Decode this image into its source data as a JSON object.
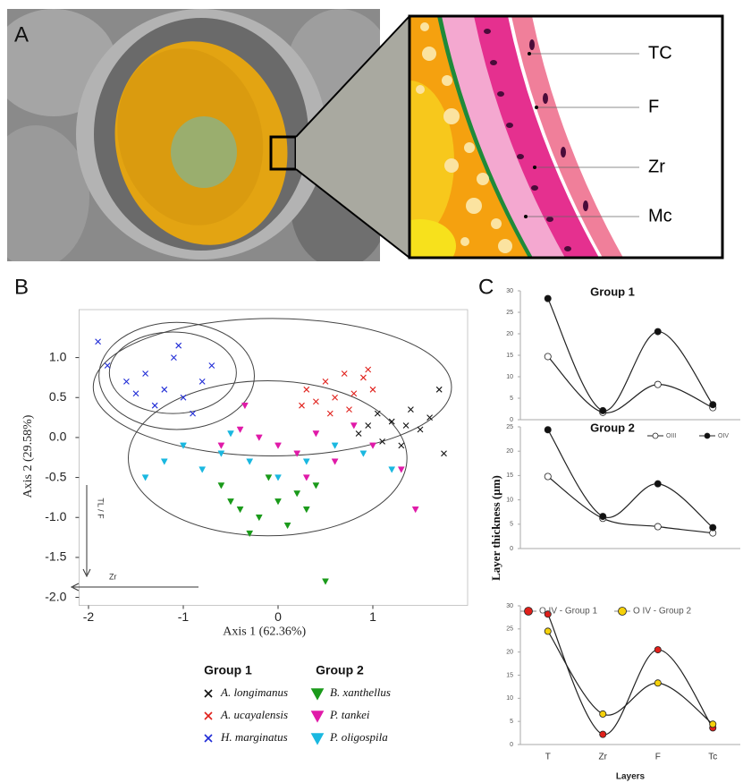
{
  "panel_labels": [
    "A",
    "B",
    "C"
  ],
  "diagram": {
    "labels": [
      "TC",
      "F",
      "Zr",
      "Mc"
    ]
  },
  "chart_data": [
    {
      "type": "scatter",
      "xlabel": "Axis 1 (62.36%)",
      "ylabel": "Axis 2 (29.58%)",
      "xlim": [
        -2.1,
        2.0
      ],
      "ylim": [
        -2.1,
        1.6
      ],
      "xticks": [
        -2,
        -1,
        0,
        1
      ],
      "yticks": [
        {
          "value": 1,
          "label": "1.0"
        },
        0.5,
        {
          "value": 0,
          "label": "0.0"
        },
        -0.5,
        {
          "value": -1,
          "label": "-1.0"
        },
        -1.5,
        {
          "value": -2,
          "label": "-2.0"
        }
      ],
      "annotations": [
        "TL / F",
        "Zr"
      ],
      "legend_titles": [
        "Group 1",
        "Group 2"
      ],
      "ellipses": [
        {
          "cx": -1.11,
          "cy": 0.81,
          "rx": 0.67,
          "ry": 0.51
        },
        {
          "cx": -1.07,
          "cy": 0.77,
          "rx": 0.82,
          "ry": 0.67
        },
        {
          "cx": -0.06,
          "cy": 0.63,
          "rx": 1.89,
          "ry": 0.86
        },
        {
          "cx": -0.11,
          "cy": -0.26,
          "rx": 1.47,
          "ry": 0.97
        }
      ],
      "series": [
        {
          "name": "A. longimanus",
          "color": "#111111",
          "marker": "x",
          "x": [
            1.05,
            1.2,
            1.35,
            1.5,
            1.7,
            1.75,
            1.1,
            0.95,
            1.3,
            1.6,
            0.85,
            1.4
          ],
          "y": [
            0.3,
            0.2,
            0.15,
            0.1,
            0.6,
            -0.2,
            -0.05,
            0.15,
            -0.1,
            0.25,
            0.05,
            0.35
          ]
        },
        {
          "name": "A. ucayalensis",
          "color": "#e0201b",
          "marker": "x",
          "x": [
            0.3,
            0.5,
            0.7,
            0.9,
            0.6,
            0.4,
            0.8,
            1.0,
            0.55,
            0.75,
            0.25,
            0.95
          ],
          "y": [
            0.6,
            0.7,
            0.8,
            0.75,
            0.5,
            0.45,
            0.55,
            0.6,
            0.3,
            0.35,
            0.4,
            0.85
          ]
        },
        {
          "name": "H. marginatus",
          "color": "#1f2bd6",
          "marker": "x",
          "x": [
            -1.9,
            -1.8,
            -1.6,
            -1.4,
            -1.2,
            -1.0,
            -0.8,
            -1.3,
            -1.1,
            -0.9,
            -1.5,
            -1.05,
            -0.7
          ],
          "y": [
            1.2,
            0.9,
            0.7,
            0.8,
            0.6,
            0.5,
            0.7,
            0.4,
            1.0,
            0.3,
            0.55,
            1.15,
            0.9
          ]
        },
        {
          "name": "B. xanthellus",
          "color": "#1a9a1a",
          "marker": "triangle",
          "x": [
            -0.6,
            -0.4,
            -0.2,
            0,
            0.2,
            0.4,
            -0.3,
            0.1,
            -0.5,
            0.3,
            -0.1,
            0.5
          ],
          "y": [
            -0.6,
            -0.9,
            -1.0,
            -0.8,
            -0.7,
            -0.6,
            -1.2,
            -1.1,
            -0.8,
            -0.9,
            -0.5,
            -1.8
          ]
        },
        {
          "name": "P. tankei",
          "color": "#e01aa8",
          "marker": "triangle",
          "x": [
            -0.4,
            -0.2,
            0,
            0.2,
            0.4,
            0.6,
            0.8,
            1.0,
            1.3,
            1.45,
            -0.6,
            -0.35,
            0.3
          ],
          "y": [
            0.1,
            0.0,
            -0.1,
            -0.2,
            0.05,
            -0.3,
            0.15,
            -0.1,
            -0.4,
            -0.9,
            -0.1,
            0.4,
            -0.5
          ]
        },
        {
          "name": "P. oligospila",
          "color": "#1ab8e0",
          "marker": "triangle",
          "x": [
            -1.4,
            -1.2,
            -1.0,
            -0.8,
            -0.6,
            -0.3,
            0,
            0.3,
            0.6,
            0.9,
            1.2,
            -0.5
          ],
          "y": [
            -0.5,
            -0.3,
            -0.1,
            -0.4,
            -0.2,
            -0.3,
            -0.5,
            -0.3,
            -0.1,
            -0.2,
            -0.4,
            0.05
          ]
        }
      ]
    },
    {
      "type": "line",
      "title": "Group 1",
      "categories": [
        null,
        null,
        null,
        null
      ],
      "ylim": [
        0,
        30
      ],
      "yticks": [
        0,
        5,
        10,
        15,
        20,
        25,
        30
      ],
      "legend": true,
      "line_color": "#222222",
      "series": [
        {
          "name": "OIII",
          "color": "#ffffff",
          "values": [
            14.7,
            1.7,
            8.2,
            2.8
          ]
        },
        {
          "name": "OIV",
          "color": "#111111",
          "values": [
            28.2,
            2.1,
            20.5,
            3.5
          ]
        }
      ]
    },
    {
      "type": "line",
      "title": "Group 2",
      "ylabel": "Layer thickness (µm)",
      "categories": [
        null,
        null,
        null,
        null
      ],
      "ylim": [
        0,
        25
      ],
      "yticks": [
        0,
        5,
        10,
        15,
        20,
        25
      ],
      "legend": false,
      "line_color": "#222222",
      "series": [
        {
          "name": "OIII",
          "color": "#ffffff",
          "values": [
            14.8,
            6.2,
            4.5,
            3.2
          ]
        },
        {
          "name": "OIV",
          "color": "#111111",
          "values": [
            24.4,
            6.6,
            13.3,
            4.3
          ]
        }
      ]
    },
    {
      "type": "line",
      "xlabel": "Layers",
      "categories": [
        "T",
        "Zr",
        "F",
        "Tc"
      ],
      "ylim": [
        0,
        30
      ],
      "yticks": [
        0,
        5,
        10,
        15,
        20,
        25,
        30
      ],
      "legend": true,
      "line_color": "#222222",
      "series": [
        {
          "name": "O IV - Group 1",
          "color": "#e0201b",
          "values": [
            28.2,
            2.2,
            20.5,
            3.6
          ]
        },
        {
          "name": "O IV - Group 2",
          "color": "#f5d10a",
          "values": [
            24.5,
            6.6,
            13.3,
            4.4
          ]
        }
      ]
    }
  ]
}
